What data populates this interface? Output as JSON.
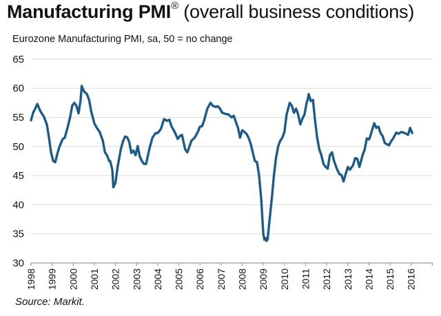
{
  "chart_data": {
    "type": "line",
    "title_bold": "Manufacturing PMI",
    "title_mark": "®",
    "title_rest": " (overall business conditions)",
    "subtitle": "Eurozone Manufacturing PMI, sa, 50 = no change",
    "source": "Source: Markit.",
    "xlabel": "",
    "ylabel": "",
    "ylim": [
      30,
      65
    ],
    "yticks": [
      30,
      35,
      40,
      45,
      50,
      55,
      60,
      65
    ],
    "xlim": [
      1998,
      2017
    ],
    "xticks": [
      "1998",
      "1999",
      "2000",
      "2001",
      "2002",
      "2003",
      "2004",
      "2005",
      "2006",
      "2007",
      "2008",
      "2009",
      "2010",
      "2011",
      "2012",
      "2013",
      "2014",
      "2015",
      "2016"
    ],
    "grid": true,
    "line_color": "#1f5a85",
    "series": [
      {
        "name": "Eurozone Manufacturing PMI",
        "x": [
          1998.0,
          1998.1,
          1998.2,
          1998.3,
          1998.45,
          1998.6,
          1998.75,
          1998.85,
          1998.95,
          1999.05,
          1999.15,
          1999.25,
          1999.35,
          1999.5,
          1999.6,
          1999.75,
          1999.85,
          1999.95,
          2000.05,
          2000.15,
          2000.25,
          2000.35,
          2000.4,
          2000.5,
          2000.65,
          2000.75,
          2000.85,
          2001.0,
          2001.1,
          2001.25,
          2001.4,
          2001.5,
          2001.6,
          2001.7,
          2001.75,
          2001.85,
          2001.9,
          2002.0,
          2002.1,
          2002.25,
          2002.35,
          2002.45,
          2002.55,
          2002.65,
          2002.75,
          2002.85,
          2002.95,
          2003.05,
          2003.15,
          2003.25,
          2003.35,
          2003.45,
          2003.6,
          2003.75,
          2003.9,
          2004.0,
          2004.15,
          2004.3,
          2004.45,
          2004.55,
          2004.65,
          2004.8,
          2004.95,
          2005.05,
          2005.15,
          2005.3,
          2005.4,
          2005.5,
          2005.6,
          2005.75,
          2005.9,
          2006.0,
          2006.1,
          2006.2,
          2006.35,
          2006.5,
          2006.6,
          2006.75,
          2006.85,
          2006.95,
          2007.05,
          2007.2,
          2007.35,
          2007.5,
          2007.6,
          2007.7,
          2007.8,
          2007.9,
          2008.0,
          2008.1,
          2008.2,
          2008.3,
          2008.4,
          2008.5,
          2008.6,
          2008.7,
          2008.8,
          2008.9,
          2009.0,
          2009.05,
          2009.1,
          2009.15,
          2009.2,
          2009.3,
          2009.4,
          2009.5,
          2009.6,
          2009.7,
          2009.8,
          2009.9,
          2010.0,
          2010.1,
          2010.25,
          2010.35,
          2010.45,
          2010.55,
          2010.65,
          2010.75,
          2010.85,
          2010.95,
          2011.05,
          2011.1,
          2011.15,
          2011.25,
          2011.35,
          2011.45,
          2011.55,
          2011.65,
          2011.75,
          2011.85,
          2011.95,
          2012.05,
          2012.15,
          2012.25,
          2012.35,
          2012.5,
          2012.6,
          2012.7,
          2012.8,
          2012.9,
          2013.0,
          2013.1,
          2013.25,
          2013.35,
          2013.45,
          2013.55,
          2013.7,
          2013.8,
          2013.9,
          2014.0,
          2014.05,
          2014.15,
          2014.25,
          2014.35,
          2014.45,
          2014.55,
          2014.65,
          2014.75,
          2014.85,
          2014.95,
          2015.05,
          2015.15,
          2015.3,
          2015.4,
          2015.55,
          2015.7,
          2015.85,
          2015.95,
          2016.05
        ],
        "values": [
          54.5,
          55.8,
          56.5,
          57.3,
          56.0,
          55.2,
          53.8,
          51.5,
          49.0,
          47.5,
          47.3,
          48.8,
          50.0,
          51.3,
          51.5,
          53.5,
          55.0,
          57.0,
          57.5,
          57.0,
          55.7,
          58.0,
          60.4,
          59.5,
          59.0,
          58.0,
          56.0,
          54.0,
          53.3,
          52.5,
          51.0,
          49.0,
          48.5,
          47.5,
          47.5,
          46.0,
          43.0,
          43.8,
          46.5,
          49.5,
          50.8,
          51.7,
          51.6,
          50.8,
          48.9,
          49.3,
          48.5,
          50.1,
          48.3,
          47.5,
          47.0,
          47.0,
          49.5,
          51.5,
          52.3,
          52.3,
          53.0,
          54.7,
          54.4,
          54.6,
          53.5,
          52.5,
          51.3,
          51.8,
          52.0,
          49.5,
          49.0,
          50.0,
          51.0,
          51.5,
          52.5,
          53.4,
          53.5,
          54.5,
          56.5,
          57.5,
          57.0,
          56.8,
          56.9,
          56.5,
          55.8,
          55.6,
          55.5,
          55.0,
          55.3,
          54.2,
          53.2,
          51.5,
          52.8,
          52.5,
          52.2,
          51.5,
          50.5,
          49.0,
          47.5,
          47.3,
          45.0,
          41.0,
          35.0,
          34.0,
          34.3,
          33.8,
          34.0,
          37.5,
          41.0,
          45.0,
          48.0,
          50.0,
          51.0,
          51.5,
          52.5,
          55.5,
          57.5,
          57.0,
          55.8,
          56.5,
          55.5,
          53.8,
          54.8,
          55.5,
          57.5,
          58.0,
          59.0,
          57.8,
          58.0,
          54.5,
          51.5,
          49.5,
          48.5,
          47.0,
          46.5,
          46.2,
          48.5,
          49.0,
          47.5,
          46.0,
          45.3,
          45.1,
          44.0,
          45.3,
          46.5,
          46.0,
          46.8,
          48.0,
          47.9,
          46.5,
          48.5,
          49.5,
          51.4,
          51.2,
          51.6,
          52.8,
          54.0,
          53.2,
          53.4,
          52.3,
          51.8,
          50.6,
          50.4,
          50.2,
          50.9,
          51.4,
          52.4,
          52.2,
          52.5,
          52.3,
          52.0,
          53.2,
          52.3
        ]
      }
    ]
  }
}
